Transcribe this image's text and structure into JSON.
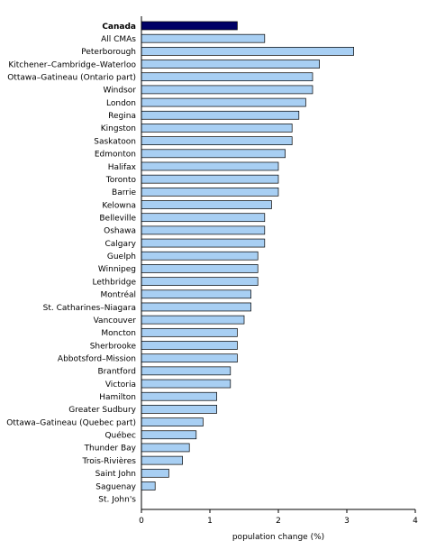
{
  "chart_data": {
    "type": "bar",
    "orientation": "horizontal",
    "title": "",
    "xlabel": "population change (%)",
    "ylabel": "",
    "xlim": [
      0,
      4
    ],
    "x_ticks": [
      0,
      1,
      2,
      3,
      4
    ],
    "grid": false,
    "highlight_category": "Canada",
    "colors": {
      "highlight": "#000066",
      "bar": "#a8cff3",
      "bar_outline": "#000000",
      "axis": "#000000",
      "text": "#000000"
    },
    "categories": [
      "Canada",
      "All CMAs",
      "Peterborough",
      "Kitchener–Cambridge–Waterloo",
      "Ottawa–Gatineau (Ontario part)",
      "Windsor",
      "London",
      "Regina",
      "Kingston",
      "Saskatoon",
      "Edmonton",
      "Halifax",
      "Toronto",
      "Barrie",
      "Kelowna",
      "Belleville",
      "Oshawa",
      "Calgary",
      "Guelph",
      "Winnipeg",
      "Lethbridge",
      "Montréal",
      "St. Catharines–Niagara",
      "Vancouver",
      "Moncton",
      "Sherbrooke",
      "Abbotsford–Mission",
      "Brantford",
      "Victoria",
      "Hamilton",
      "Greater Sudbury",
      "Ottawa–Gatineau (Quebec part)",
      "Québec",
      "Thunder Bay",
      "Trois-Rivières",
      "Saint John",
      "Saguenay",
      "St. John's"
    ],
    "values": [
      1.4,
      1.8,
      3.1,
      2.6,
      2.5,
      2.5,
      2.4,
      2.3,
      2.2,
      2.2,
      2.1,
      2.0,
      2.0,
      2.0,
      1.9,
      1.8,
      1.8,
      1.8,
      1.7,
      1.7,
      1.7,
      1.6,
      1.6,
      1.5,
      1.4,
      1.4,
      1.4,
      1.3,
      1.3,
      1.1,
      1.1,
      0.9,
      0.8,
      0.7,
      0.6,
      0.4,
      0.2,
      0.0
    ]
  }
}
